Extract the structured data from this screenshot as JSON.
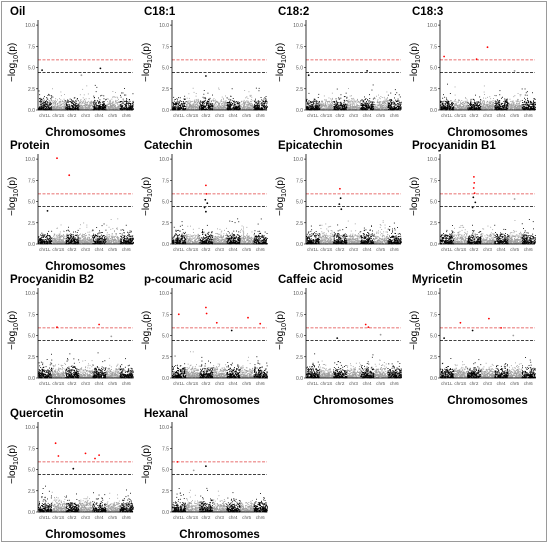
{
  "figure": {
    "y_axis_label_main": "−log",
    "y_axis_label_sub": "10",
    "y_axis_label_tail": "(p)",
    "x_axis_label": "Chromosomes",
    "colors": {
      "odd_chromosome": "#000000",
      "even_chromosome": "#9e9e9e",
      "significant_point": "#ff0000",
      "upper_threshold_line": "#e04040",
      "lower_threshold_line": "#000000"
    }
  },
  "chart_data": [
    {
      "type": "scatter",
      "title": "Oil",
      "chromosomes": [
        "chr1L",
        "chr1S",
        "chr2",
        "chr3",
        "chr4",
        "chr5",
        "chr6"
      ],
      "y_ticks": [
        "0.0",
        "2.5",
        "5.0",
        "7.5",
        "10.0"
      ],
      "ylim": [
        0,
        10.6
      ],
      "threshold_upper": 5.9,
      "threshold_lower": 4.4,
      "background_max": 3.2,
      "peaks": [
        {
          "chr": "chr1L",
          "pos": 0.3,
          "y": 4.7
        },
        {
          "chr": "chr4",
          "pos": 0.6,
          "y": 4.9
        },
        {
          "chr": "chr3",
          "pos": 0.2,
          "y": 4.1
        }
      ]
    },
    {
      "type": "scatter",
      "title": "C18:1",
      "chromosomes": [
        "chr1L",
        "chr1S",
        "chr2",
        "chr3",
        "chr4",
        "chr5",
        "chr6"
      ],
      "y_ticks": [
        "0.0",
        "2.5",
        "5.0",
        "7.5",
        "10.0"
      ],
      "ylim": [
        0,
        10.6
      ],
      "threshold_upper": 5.9,
      "threshold_lower": 4.4,
      "background_max": 3.0,
      "peaks": [
        {
          "chr": "chr2",
          "pos": 0.5,
          "y": 4.0
        }
      ]
    },
    {
      "type": "scatter",
      "title": "C18:2",
      "chromosomes": [
        "chr1L",
        "chr1S",
        "chr2",
        "chr3",
        "chr4",
        "chr5",
        "chr6"
      ],
      "y_ticks": [
        "0.0",
        "2.5",
        "5.0",
        "7.5",
        "10.0"
      ],
      "ylim": [
        0,
        10.6
      ],
      "threshold_upper": 5.9,
      "threshold_lower": 4.4,
      "background_max": 3.0,
      "peaks": [
        {
          "chr": "chr1L",
          "pos": 0.2,
          "y": 4.1
        },
        {
          "chr": "chr4",
          "pos": 0.5,
          "y": 4.6
        }
      ]
    },
    {
      "type": "scatter",
      "title": "C18:3",
      "chromosomes": [
        "chr1L",
        "chr1S",
        "chr2",
        "chr3",
        "chr4",
        "chr5",
        "chr6"
      ],
      "y_ticks": [
        "0.0",
        "2.5",
        "5.0",
        "7.5",
        "10.0"
      ],
      "ylim": [
        0,
        10.6
      ],
      "threshold_upper": 5.9,
      "threshold_lower": 4.4,
      "background_max": 3.4,
      "peaks": [
        {
          "chr": "chr1L",
          "pos": 0.3,
          "y": 6.3
        },
        {
          "chr": "chr2",
          "pos": 0.7,
          "y": 6.0
        },
        {
          "chr": "chr3",
          "pos": 0.5,
          "y": 7.4
        },
        {
          "chr": "chr5",
          "pos": 0.5,
          "y": 4.6
        }
      ]
    },
    {
      "type": "scatter",
      "title": "Protein",
      "chromosomes": [
        "chr1L",
        "chr1S",
        "chr2",
        "chr3",
        "chr4",
        "chr5",
        "chr6"
      ],
      "y_ticks": [
        "0.0",
        "2.5",
        "5.0",
        "7.5",
        "10.0"
      ],
      "ylim": [
        0,
        10.6
      ],
      "threshold_upper": 5.9,
      "threshold_lower": 4.4,
      "background_max": 3.3,
      "peaks": [
        {
          "chr": "chr1S",
          "pos": 0.4,
          "y": 10.1
        },
        {
          "chr": "chr2",
          "pos": 0.3,
          "y": 8.1
        },
        {
          "chr": "chr1L",
          "pos": 0.7,
          "y": 3.9
        }
      ]
    },
    {
      "type": "scatter",
      "title": "Catechin",
      "chromosomes": [
        "chr1L",
        "chr1S",
        "chr2",
        "chr3",
        "chr4",
        "chr5",
        "chr6"
      ],
      "y_ticks": [
        "0.0",
        "2.5",
        "5.0",
        "7.5",
        "10.0"
      ],
      "ylim": [
        0,
        10.6
      ],
      "threshold_upper": 5.9,
      "threshold_lower": 4.4,
      "background_max": 3.4,
      "peaks": [
        {
          "chr": "chr2",
          "pos": 0.5,
          "y": 6.9
        },
        {
          "chr": "chr2",
          "pos": 0.55,
          "y": 5.9
        },
        {
          "chr": "chr2",
          "pos": 0.45,
          "y": 5.2
        },
        {
          "chr": "chr2",
          "pos": 0.6,
          "y": 4.8
        },
        {
          "chr": "chr2",
          "pos": 0.4,
          "y": 4.3
        },
        {
          "chr": "chr2",
          "pos": 0.5,
          "y": 3.8
        }
      ]
    },
    {
      "type": "scatter",
      "title": "Epicatechin",
      "chromosomes": [
        "chr1L",
        "chr1S",
        "chr2",
        "chr3",
        "chr4",
        "chr5",
        "chr6"
      ],
      "y_ticks": [
        "0.0",
        "2.5",
        "5.0",
        "7.5",
        "10.0"
      ],
      "ylim": [
        0,
        10.6
      ],
      "threshold_upper": 5.9,
      "threshold_lower": 4.4,
      "background_max": 3.4,
      "peaks": [
        {
          "chr": "chr2",
          "pos": 0.5,
          "y": 6.5
        },
        {
          "chr": "chr2",
          "pos": 0.55,
          "y": 5.4
        },
        {
          "chr": "chr2",
          "pos": 0.45,
          "y": 4.7
        },
        {
          "chr": "chr2",
          "pos": 0.6,
          "y": 4.1
        }
      ]
    },
    {
      "type": "scatter",
      "title": "Procyanidin B1",
      "chromosomes": [
        "chr1L",
        "chr1S",
        "chr2",
        "chr3",
        "chr4",
        "chr5",
        "chr6"
      ],
      "y_ticks": [
        "0.0",
        "2.5",
        "5.0",
        "7.5",
        "10.0"
      ],
      "ylim": [
        0,
        10.6
      ],
      "threshold_upper": 5.9,
      "threshold_lower": 4.4,
      "background_max": 3.4,
      "peaks": [
        {
          "chr": "chr2",
          "pos": 0.5,
          "y": 7.9
        },
        {
          "chr": "chr2",
          "pos": 0.52,
          "y": 7.2
        },
        {
          "chr": "chr2",
          "pos": 0.48,
          "y": 6.6
        },
        {
          "chr": "chr2",
          "pos": 0.55,
          "y": 6.0
        },
        {
          "chr": "chr2",
          "pos": 0.45,
          "y": 5.5
        },
        {
          "chr": "chr2",
          "pos": 0.6,
          "y": 4.9
        },
        {
          "chr": "chr2",
          "pos": 0.4,
          "y": 4.3
        },
        {
          "chr": "chr5",
          "pos": 0.5,
          "y": 5.3
        }
      ]
    },
    {
      "type": "scatter",
      "title": "Procyanidin B2",
      "chromosomes": [
        "chr1L",
        "chr1S",
        "chr2",
        "chr3",
        "chr4",
        "chr5",
        "chr6"
      ],
      "y_ticks": [
        "0.0",
        "2.5",
        "5.0",
        "7.5",
        "10.0"
      ],
      "ylim": [
        0,
        10.6
      ],
      "threshold_upper": 5.9,
      "threshold_lower": 4.4,
      "background_max": 3.4,
      "peaks": [
        {
          "chr": "chr1S",
          "pos": 0.4,
          "y": 6.0
        },
        {
          "chr": "chr4",
          "pos": 0.5,
          "y": 6.3
        },
        {
          "chr": "chr5",
          "pos": 0.4,
          "y": 4.9
        },
        {
          "chr": "chr2",
          "pos": 0.5,
          "y": 4.5
        }
      ]
    },
    {
      "type": "scatter",
      "title": "p-coumaric acid",
      "chromosomes": [
        "chr1L",
        "chr1S",
        "chr2",
        "chr3",
        "chr4",
        "chr5",
        "chr6"
      ],
      "y_ticks": [
        "0.0",
        "2.5",
        "5.0",
        "7.5",
        "10.0"
      ],
      "ylim": [
        0,
        10.6
      ],
      "threshold_upper": 5.9,
      "threshold_lower": 4.4,
      "background_max": 3.4,
      "peaks": [
        {
          "chr": "chr2",
          "pos": 0.5,
          "y": 8.3
        },
        {
          "chr": "chr2",
          "pos": 0.55,
          "y": 7.6
        },
        {
          "chr": "chr1L",
          "pos": 0.5,
          "y": 7.5
        },
        {
          "chr": "chr3",
          "pos": 0.3,
          "y": 6.5
        },
        {
          "chr": "chr4",
          "pos": 0.4,
          "y": 5.6
        },
        {
          "chr": "chr5",
          "pos": 0.6,
          "y": 7.1
        },
        {
          "chr": "chr6",
          "pos": 0.5,
          "y": 6.4
        }
      ]
    },
    {
      "type": "scatter",
      "title": "Caffeic acid",
      "chromosomes": [
        "chr1L",
        "chr1S",
        "chr2",
        "chr3",
        "chr4",
        "chr5",
        "chr6"
      ],
      "y_ticks": [
        "0.0",
        "2.5",
        "5.0",
        "7.5",
        "10.0"
      ],
      "ylim": [
        0,
        10.6
      ],
      "threshold_upper": 5.9,
      "threshold_lower": 4.4,
      "background_max": 3.4,
      "peaks": [
        {
          "chr": "chr2",
          "pos": 0.3,
          "y": 4.7
        },
        {
          "chr": "chr4",
          "pos": 0.4,
          "y": 6.3
        },
        {
          "chr": "chr4",
          "pos": 0.6,
          "y": 6.0
        },
        {
          "chr": "chr5",
          "pos": 0.5,
          "y": 5.1
        }
      ]
    },
    {
      "type": "scatter",
      "title": "Myricetin",
      "chromosomes": [
        "chr1L",
        "chr1S",
        "chr2",
        "chr3",
        "chr4",
        "chr5",
        "chr6"
      ],
      "y_ticks": [
        "0.0",
        "2.5",
        "5.0",
        "7.5",
        "10.0"
      ],
      "ylim": [
        0,
        10.6
      ],
      "threshold_upper": 5.9,
      "threshold_lower": 4.4,
      "background_max": 3.6,
      "peaks": [
        {
          "chr": "chr1S",
          "pos": 0.5,
          "y": 6.5
        },
        {
          "chr": "chr2",
          "pos": 0.4,
          "y": 5.6
        },
        {
          "chr": "chr3",
          "pos": 0.6,
          "y": 7.0
        },
        {
          "chr": "chr4",
          "pos": 0.5,
          "y": 5.9
        },
        {
          "chr": "chr5",
          "pos": 0.4,
          "y": 5.0
        },
        {
          "chr": "chr1L",
          "pos": 0.3,
          "y": 4.7
        }
      ]
    },
    {
      "type": "scatter",
      "title": "Quercetin",
      "chromosomes": [
        "chr1L",
        "chr1S",
        "chr2",
        "chr3",
        "chr4",
        "chr5",
        "chr6"
      ],
      "y_ticks": [
        "0.0",
        "2.5",
        "5.0",
        "7.5",
        "10.0"
      ],
      "ylim": [
        0,
        10.6
      ],
      "threshold_upper": 5.9,
      "threshold_lower": 4.4,
      "background_max": 3.6,
      "peaks": [
        {
          "chr": "chr1S",
          "pos": 0.3,
          "y": 8.1
        },
        {
          "chr": "chr1S",
          "pos": 0.5,
          "y": 6.6
        },
        {
          "chr": "chr3",
          "pos": 0.5,
          "y": 6.9
        },
        {
          "chr": "chr4",
          "pos": 0.2,
          "y": 6.3
        },
        {
          "chr": "chr4",
          "pos": 0.5,
          "y": 6.7
        },
        {
          "chr": "chr2",
          "pos": 0.6,
          "y": 5.1
        }
      ]
    },
    {
      "type": "scatter",
      "title": "Hexanal",
      "chromosomes": [
        "chr1L",
        "chr1S",
        "chr2",
        "chr3",
        "chr4",
        "chr5",
        "chr6"
      ],
      "y_ticks": [
        "0.0",
        "2.5",
        "5.0",
        "7.5",
        "10.0"
      ],
      "ylim": [
        0,
        10.6
      ],
      "threshold_upper": 5.9,
      "threshold_lower": 4.4,
      "background_max": 3.4,
      "peaks": [
        {
          "chr": "chr1L",
          "pos": 0.4,
          "y": 5.9
        },
        {
          "chr": "chr2",
          "pos": 0.5,
          "y": 5.4
        },
        {
          "chr": "chr1S",
          "pos": 0.6,
          "y": 4.9
        }
      ]
    }
  ]
}
